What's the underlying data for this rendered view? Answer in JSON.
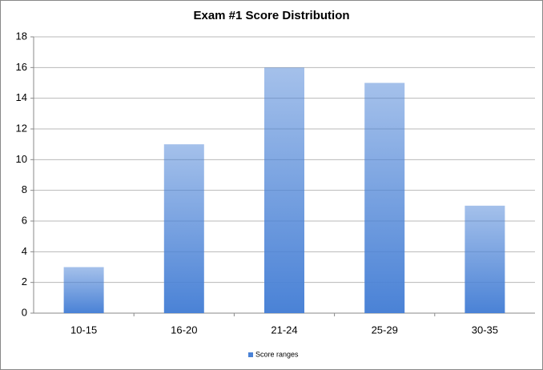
{
  "chart_data": {
    "type": "bar",
    "title": "Exam #1 Score Distribution",
    "categories": [
      "10-15",
      "16-20",
      "21-24",
      "25-29",
      "30-35"
    ],
    "series": [
      {
        "name": "Score ranges",
        "color": "#4a82d6",
        "values": [
          3,
          11,
          16,
          15,
          7
        ]
      }
    ],
    "ylim": [
      0,
      18
    ],
    "yticks": [
      0,
      2,
      4,
      6,
      8,
      10,
      12,
      14,
      16,
      18
    ],
    "grid": true,
    "legend": "bottom"
  }
}
